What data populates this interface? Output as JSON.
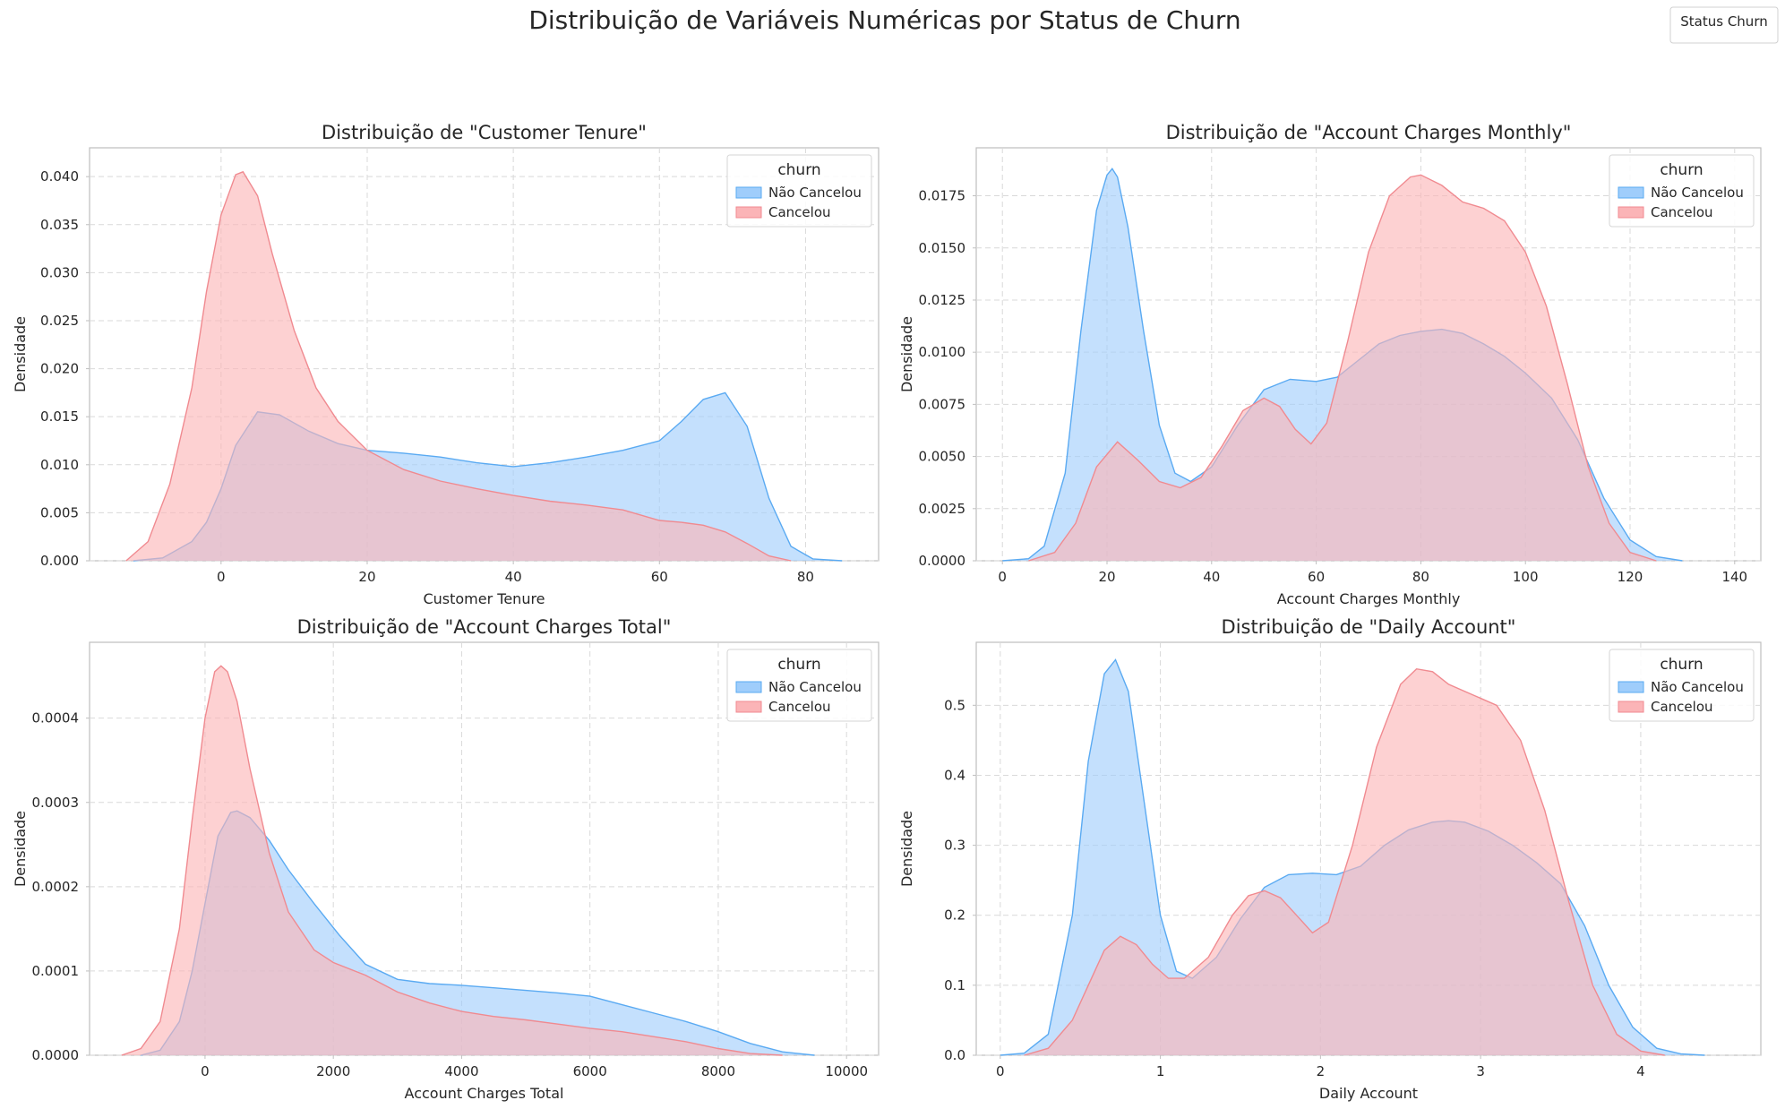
{
  "figure": {
    "title": "Distribuição de Variáveis Numéricas por Status de Churn",
    "legend_box_label": "Status Churn"
  },
  "colors": {
    "nao_cancelou_fill": "#9fcdfb",
    "nao_cancelou_line": "#5aaaf2",
    "cancelou_fill": "#fbb4b7",
    "cancelou_line": "#f08a90",
    "overlap": "#bbbfe0"
  },
  "legend": {
    "title": "churn",
    "entries": [
      "Não Cancelou",
      "Cancelou"
    ],
    "placement": "top-right"
  },
  "chart_data": [
    {
      "type": "area",
      "title": "Distribuição de \"Customer Tenure\"",
      "xlabel": "Customer Tenure",
      "ylabel": "Densidade",
      "xlim": [
        -18,
        90
      ],
      "ylim": [
        0,
        0.043
      ],
      "xticks": [
        0,
        20,
        40,
        60,
        80
      ],
      "yticks": [
        0.0,
        0.005,
        0.01,
        0.015,
        0.02,
        0.025,
        0.03,
        0.035,
        0.04
      ],
      "ytick_labels": [
        "0.000",
        "0.005",
        "0.010",
        "0.015",
        "0.020",
        "0.025",
        "0.030",
        "0.035",
        "0.040"
      ],
      "grid": true,
      "series": [
        {
          "name": "Não Cancelou",
          "x": [
            -12,
            -8,
            -4,
            -2,
            0,
            2,
            5,
            8,
            12,
            16,
            20,
            25,
            30,
            35,
            40,
            45,
            50,
            55,
            60,
            63,
            66,
            69,
            72,
            75,
            78,
            81,
            85
          ],
          "values": [
            0,
            0.0003,
            0.002,
            0.004,
            0.0075,
            0.012,
            0.0155,
            0.0152,
            0.0135,
            0.0122,
            0.0115,
            0.0112,
            0.0108,
            0.0102,
            0.0098,
            0.0102,
            0.0108,
            0.0115,
            0.0125,
            0.0145,
            0.0168,
            0.0175,
            0.014,
            0.0065,
            0.0015,
            0.0002,
            0
          ]
        },
        {
          "name": "Cancelou",
          "x": [
            -13,
            -10,
            -7,
            -4,
            -2,
            0,
            2,
            3,
            5,
            7,
            10,
            13,
            16,
            20,
            25,
            30,
            35,
            40,
            45,
            50,
            55,
            60,
            63,
            66,
            69,
            72,
            75,
            78
          ],
          "values": [
            0,
            0.002,
            0.008,
            0.018,
            0.028,
            0.036,
            0.0402,
            0.0405,
            0.038,
            0.032,
            0.024,
            0.018,
            0.0145,
            0.0115,
            0.0095,
            0.0083,
            0.0075,
            0.0068,
            0.0062,
            0.0058,
            0.0053,
            0.0042,
            0.004,
            0.0037,
            0.003,
            0.0018,
            0.0005,
            0
          ]
        }
      ]
    },
    {
      "type": "area",
      "title": "Distribuição de \"Account Charges Monthly\"",
      "xlabel": "Account Charges Monthly",
      "ylabel": "Densidade",
      "xlim": [
        -5,
        145
      ],
      "ylim": [
        0,
        0.0198
      ],
      "xticks": [
        0,
        20,
        40,
        60,
        80,
        100,
        120,
        140
      ],
      "yticks": [
        0,
        0.0025,
        0.005,
        0.0075,
        0.01,
        0.0125,
        0.015,
        0.0175
      ],
      "ytick_labels": [
        "0.0000",
        "0.0025",
        "0.0050",
        "0.0075",
        "0.0100",
        "0.0125",
        "0.0150",
        "0.0175"
      ],
      "grid": true,
      "series": [
        {
          "name": "Não Cancelou",
          "x": [
            0,
            5,
            8,
            12,
            15,
            18,
            20,
            21,
            22,
            24,
            27,
            30,
            33,
            36,
            40,
            45,
            50,
            55,
            60,
            64,
            68,
            72,
            76,
            80,
            84,
            88,
            92,
            96,
            100,
            105,
            110,
            115,
            120,
            125,
            130
          ],
          "values": [
            0,
            0.0001,
            0.0007,
            0.0042,
            0.011,
            0.0168,
            0.0185,
            0.0188,
            0.0184,
            0.016,
            0.011,
            0.0065,
            0.0042,
            0.0038,
            0.0045,
            0.0065,
            0.0082,
            0.0087,
            0.0086,
            0.0088,
            0.0096,
            0.0104,
            0.0108,
            0.011,
            0.0111,
            0.0109,
            0.0104,
            0.0098,
            0.009,
            0.0078,
            0.0058,
            0.003,
            0.001,
            0.0002,
            0
          ]
        },
        {
          "name": "Cancelou",
          "x": [
            5,
            10,
            14,
            18,
            22,
            26,
            30,
            34,
            38,
            42,
            46,
            50,
            53,
            56,
            59,
            62,
            66,
            70,
            74,
            78,
            80,
            84,
            88,
            92,
            96,
            100,
            104,
            108,
            112,
            116,
            120,
            125
          ],
          "values": [
            0,
            0.0004,
            0.0018,
            0.0045,
            0.0057,
            0.0048,
            0.0038,
            0.0035,
            0.004,
            0.0055,
            0.0072,
            0.0078,
            0.0074,
            0.0063,
            0.0056,
            0.0066,
            0.0105,
            0.0148,
            0.0175,
            0.0184,
            0.0185,
            0.018,
            0.0172,
            0.0169,
            0.0163,
            0.0148,
            0.0122,
            0.0085,
            0.0045,
            0.0018,
            0.0004,
            0
          ]
        }
      ]
    },
    {
      "type": "area",
      "title": "Distribuição de \"Account Charges Total\"",
      "xlabel": "Account Charges Total",
      "ylabel": "Densidade",
      "xlim": [
        -1800,
        10500
      ],
      "ylim": [
        0,
        0.00049
      ],
      "xticks": [
        0,
        2000,
        4000,
        6000,
        8000,
        10000
      ],
      "yticks": [
        0,
        0.0001,
        0.0002,
        0.0003,
        0.0004
      ],
      "ytick_labels": [
        "0.0000",
        "0.0001",
        "0.0002",
        "0.0003",
        "0.0004"
      ],
      "grid": true,
      "series": [
        {
          "name": "Não Cancelou",
          "x": [
            -1000,
            -700,
            -400,
            -200,
            0,
            200,
            400,
            500,
            700,
            1000,
            1300,
            1700,
            2100,
            2500,
            3000,
            3500,
            4000,
            4500,
            5000,
            5500,
            6000,
            6500,
            7000,
            7500,
            8000,
            8500,
            9000,
            9500
          ],
          "values": [
            0,
            6e-06,
            4e-05,
            0.0001,
            0.00018,
            0.00026,
            0.000288,
            0.00029,
            0.000282,
            0.000255,
            0.00022,
            0.00018,
            0.000142,
            0.000108,
            9e-05,
            8.5e-05,
            8.3e-05,
            8e-05,
            7.7e-05,
            7.4e-05,
            7e-05,
            6e-05,
            5e-05,
            4e-05,
            2.8e-05,
            1.4e-05,
            4e-06,
            0
          ]
        },
        {
          "name": "Cancelou",
          "x": [
            -1300,
            -1000,
            -700,
            -400,
            -200,
            0,
            150,
            250,
            350,
            500,
            700,
            1000,
            1300,
            1700,
            2000,
            2500,
            3000,
            3500,
            4000,
            4500,
            5000,
            5500,
            6000,
            6500,
            7000,
            7500,
            8000,
            8500,
            9000
          ],
          "values": [
            0,
            8e-06,
            4e-05,
            0.00015,
            0.00028,
            0.0004,
            0.000455,
            0.000462,
            0.000455,
            0.00042,
            0.00034,
            0.00024,
            0.00017,
            0.000125,
            0.00011,
            9.5e-05,
            7.5e-05,
            6.2e-05,
            5.2e-05,
            4.6e-05,
            4.2e-05,
            3.7e-05,
            3.2e-05,
            2.8e-05,
            2.2e-05,
            1.6e-05,
            8e-06,
            2e-06,
            0
          ]
        }
      ]
    },
    {
      "type": "area",
      "title": "Distribuição de \"Daily Account\"",
      "xlabel": "Daily Account",
      "ylabel": "Densidade",
      "xlim": [
        -0.15,
        4.75
      ],
      "ylim": [
        0,
        0.59
      ],
      "xticks": [
        0,
        1,
        2,
        3,
        4
      ],
      "yticks": [
        0,
        0.1,
        0.2,
        0.3,
        0.4,
        0.5
      ],
      "ytick_labels": [
        "0.0",
        "0.1",
        "0.2",
        "0.3",
        "0.4",
        "0.5"
      ],
      "grid": true,
      "series": [
        {
          "name": "Não Cancelou",
          "x": [
            0,
            0.15,
            0.3,
            0.45,
            0.55,
            0.65,
            0.72,
            0.8,
            0.9,
            1.0,
            1.1,
            1.2,
            1.35,
            1.5,
            1.65,
            1.8,
            1.95,
            2.1,
            2.25,
            2.4,
            2.55,
            2.7,
            2.8,
            2.9,
            3.05,
            3.2,
            3.35,
            3.5,
            3.65,
            3.8,
            3.95,
            4.1,
            4.25,
            4.4
          ],
          "values": [
            0,
            0.003,
            0.03,
            0.2,
            0.42,
            0.545,
            0.565,
            0.52,
            0.36,
            0.2,
            0.12,
            0.11,
            0.14,
            0.195,
            0.24,
            0.258,
            0.26,
            0.258,
            0.27,
            0.3,
            0.322,
            0.333,
            0.335,
            0.333,
            0.32,
            0.3,
            0.275,
            0.245,
            0.185,
            0.1,
            0.04,
            0.01,
            0.002,
            0
          ]
        },
        {
          "name": "Cancelou",
          "x": [
            0.15,
            0.3,
            0.45,
            0.55,
            0.65,
            0.75,
            0.85,
            0.95,
            1.05,
            1.15,
            1.3,
            1.45,
            1.55,
            1.65,
            1.75,
            1.85,
            1.95,
            2.05,
            2.2,
            2.35,
            2.5,
            2.6,
            2.7,
            2.8,
            2.95,
            3.1,
            3.25,
            3.4,
            3.55,
            3.7,
            3.85,
            4.0,
            4.15
          ],
          "values": [
            0,
            0.01,
            0.05,
            0.1,
            0.15,
            0.17,
            0.158,
            0.13,
            0.11,
            0.11,
            0.14,
            0.2,
            0.228,
            0.235,
            0.225,
            0.2,
            0.175,
            0.19,
            0.3,
            0.44,
            0.53,
            0.552,
            0.548,
            0.53,
            0.515,
            0.5,
            0.45,
            0.35,
            0.22,
            0.1,
            0.03,
            0.006,
            0
          ]
        }
      ]
    }
  ]
}
